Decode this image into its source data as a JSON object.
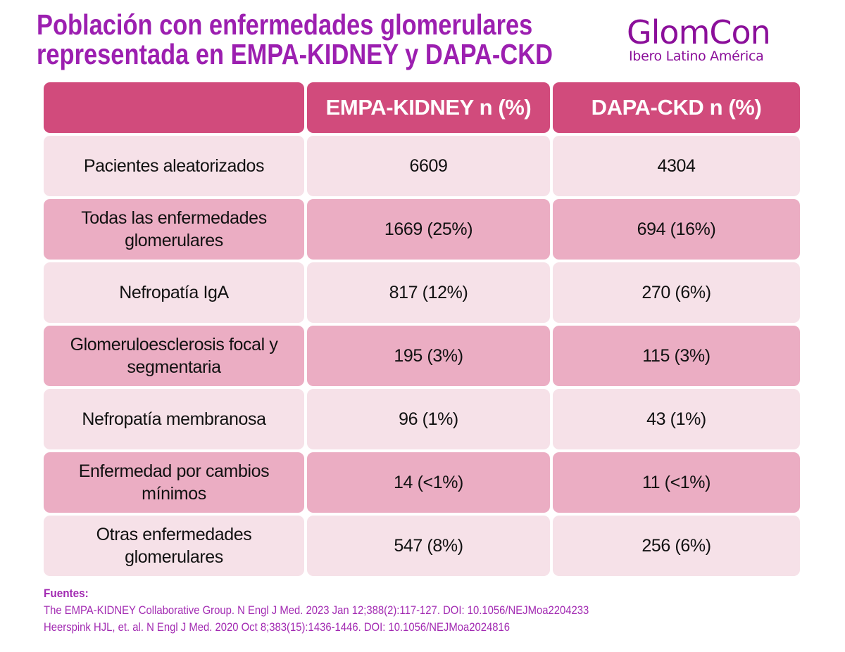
{
  "title": {
    "line1": "Población con enfermedades glomerulares",
    "line2": "representada en EMPA-KIDNEY y DAPA-CKD"
  },
  "logo": {
    "name": "GlomCon",
    "subtitle": "Ibero Latino América"
  },
  "colors": {
    "title": "#9c1fb0",
    "header": "#d14b7c",
    "row_dark": "#ebadc3",
    "row_light": "#f6e1e8"
  },
  "table": {
    "headers": [
      "",
      "EMPA-KIDNEY n (%)",
      "DAPA-CKD n (%)"
    ],
    "rows": [
      [
        "Pacientes aleatorizados",
        "6609",
        "4304"
      ],
      [
        "Todas las enfermedades glomerulares",
        "1669 (25%)",
        "694 (16%)"
      ],
      [
        "Nefropatía IgA",
        "817 (12%)",
        "270 (6%)"
      ],
      [
        "Glomeruloesclerosis focal y segmentaria",
        "195 (3%)",
        "115 (3%)"
      ],
      [
        "Nefropatía membranosa",
        "96 (1%)",
        "43 (1%)"
      ],
      [
        "Enfermedad por cambios mínimos",
        "14 (<1%)",
        "11 (<1%)"
      ],
      [
        "Otras enfermedades glomerulares",
        "547 (8%)",
        "256 (6%)"
      ]
    ]
  },
  "footer": {
    "label": "Fuentes:",
    "refs": [
      "The EMPA-KIDNEY Collaborative Group. N Engl J Med. 2023 Jan 12;388(2):117-127. DOI: 10.1056/NEJMoa2204233",
      "Heerspink HJL, et. al. N Engl J Med. 2020 Oct 8;383(15):1436-1446. DOI: 10.1056/NEJMoa2024816"
    ]
  }
}
